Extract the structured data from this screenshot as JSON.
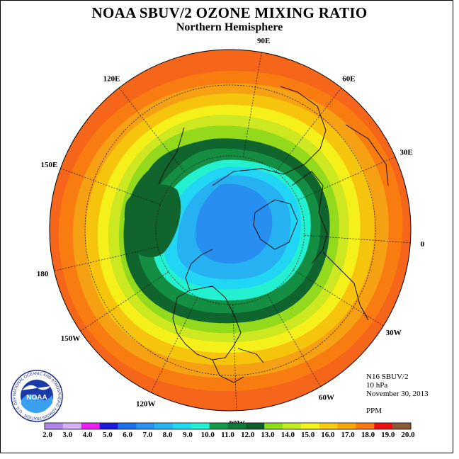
{
  "header": {
    "title": "NOAA SBUV/2 OZONE MIXING RATIO",
    "subtitle": "Northern Hemisphere"
  },
  "map": {
    "projection": "polar stereographic",
    "longitude_labels": [
      "90E",
      "60E",
      "30E",
      "0",
      "30W",
      "60W",
      "90W",
      "120W",
      "150W",
      "180",
      "150E",
      "120E"
    ]
  },
  "info": {
    "instrument": "N16 SBUV/2",
    "level": "10 hPa",
    "date": "November 30, 2013",
    "units": "PPM"
  },
  "logo": {
    "text": "NOAA",
    "ring_text": "NATIONAL OCEANIC AND ATMOSPHERIC ADMINISTRATION · U.S. DEPARTMENT OF COMMERCE"
  },
  "legend": {
    "ticks": [
      "2.0",
      "3.0",
      "4.0",
      "5.0",
      "6.0",
      "7.0",
      "8.0",
      "9.0",
      "10.0",
      "11.0",
      "12.0",
      "13.0",
      "14.0",
      "15.0",
      "16.0",
      "17.0",
      "18.0",
      "19.0",
      "20.0"
    ],
    "colors": [
      "#b085e8",
      "#d5b2f3",
      "#ee22ee",
      "#1a1ad8",
      "#1b6fe8",
      "#2b93f0",
      "#27b4f3",
      "#22d8f2",
      "#23f2d2",
      "#129a48",
      "#0f7a3a",
      "#0c5e2c",
      "#8fdc1c",
      "#c4ee22",
      "#f5f51c",
      "#f8cc0e",
      "#f8a808",
      "#f87a10",
      "#ee1010",
      "#8a5a3a"
    ]
  },
  "field": {
    "colors": {
      "c19": "#f5661a",
      "c18": "#f87c10",
      "c17": "#f6a014",
      "c16": "#f7c40d",
      "c15": "#f5ef1a",
      "c14": "#cde820",
      "c13": "#94da1c",
      "c12": "#10652e",
      "c11": "#138e43",
      "c10": "#22f0cf",
      "c9": "#20d6f4",
      "c8": "#26b2f2",
      "c7": "#268ff0"
    }
  }
}
